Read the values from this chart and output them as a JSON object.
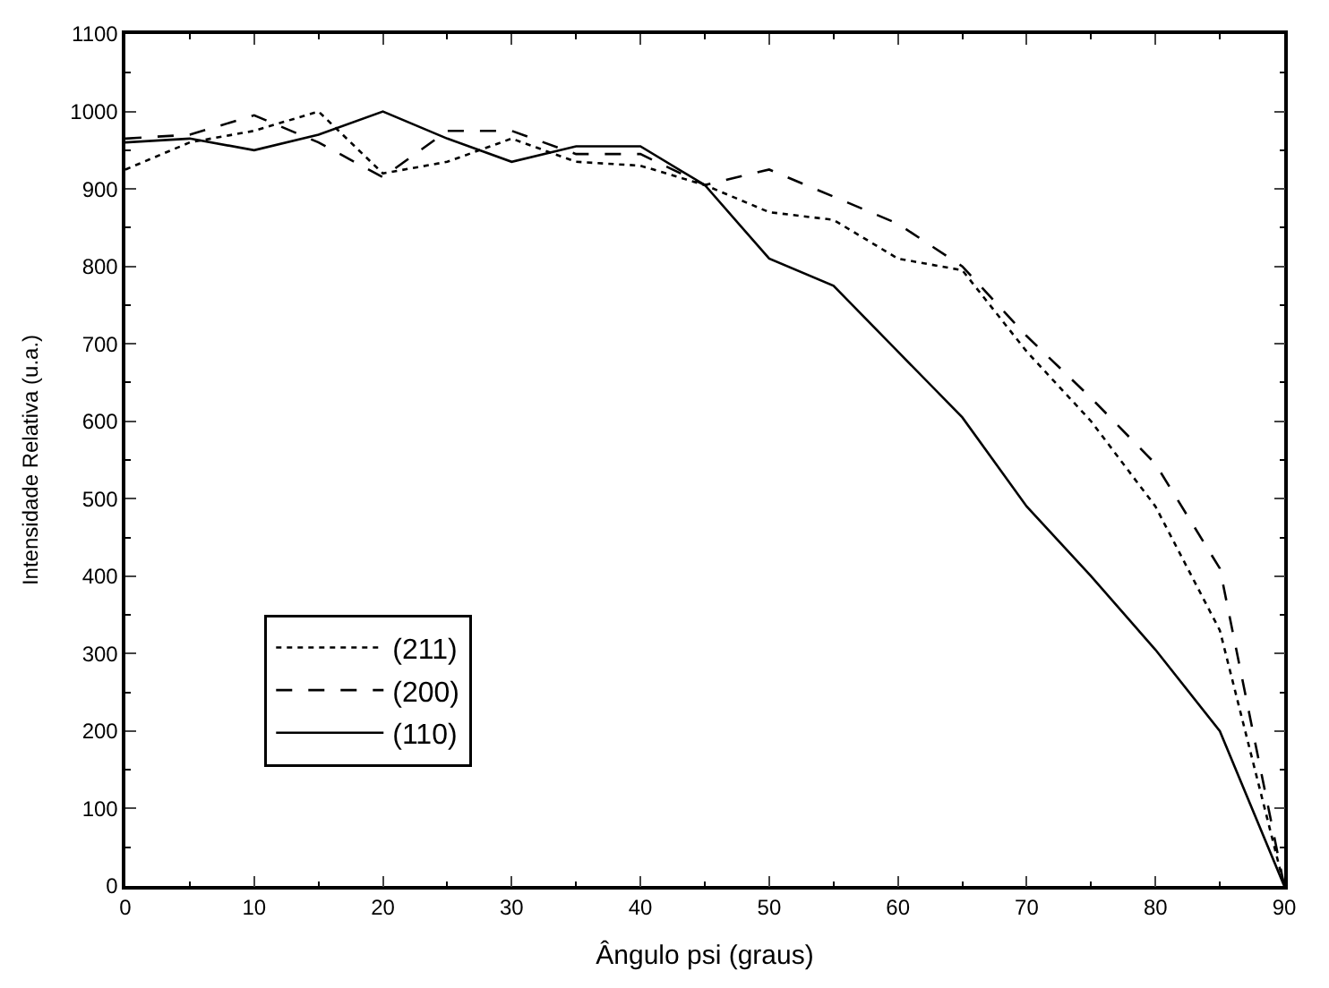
{
  "chart_data": {
    "type": "line",
    "xlabel": "Ângulo psi (graus)",
    "ylabel": "Intensidade Relativa (u.a.)",
    "x": [
      0,
      5,
      10,
      15,
      20,
      25,
      30,
      35,
      40,
      45,
      50,
      55,
      60,
      65,
      70,
      75,
      80,
      85,
      90
    ],
    "xlim": [
      0,
      90
    ],
    "xticks": [
      0,
      10,
      20,
      30,
      40,
      50,
      60,
      70,
      80,
      90
    ],
    "ylim": [
      0,
      1100
    ],
    "yticks": [
      0,
      100,
      200,
      300,
      400,
      500,
      600,
      700,
      800,
      900,
      1000,
      1100
    ],
    "legend": "bottom left",
    "marker": "none",
    "series": [
      {
        "name": "(211)",
        "color": "#000000",
        "line_style": "dotted",
        "values": [
          925,
          960,
          975,
          1000,
          920,
          935,
          965,
          935,
          930,
          905,
          870,
          860,
          810,
          795,
          690,
          600,
          490,
          330,
          0
        ]
      },
      {
        "name": "(200)",
        "color": "#000000",
        "line_style": "dashed",
        "values": [
          965,
          970,
          995,
          960,
          915,
          975,
          975,
          945,
          945,
          905,
          925,
          890,
          855,
          800,
          710,
          630,
          545,
          410,
          0
        ]
      },
      {
        "name": "(110)",
        "color": "#000000",
        "line_style": "solid",
        "values": [
          960,
          965,
          950,
          970,
          1000,
          965,
          935,
          955,
          955,
          905,
          810,
          775,
          690,
          605,
          490,
          400,
          305,
          200,
          0
        ]
      }
    ]
  }
}
